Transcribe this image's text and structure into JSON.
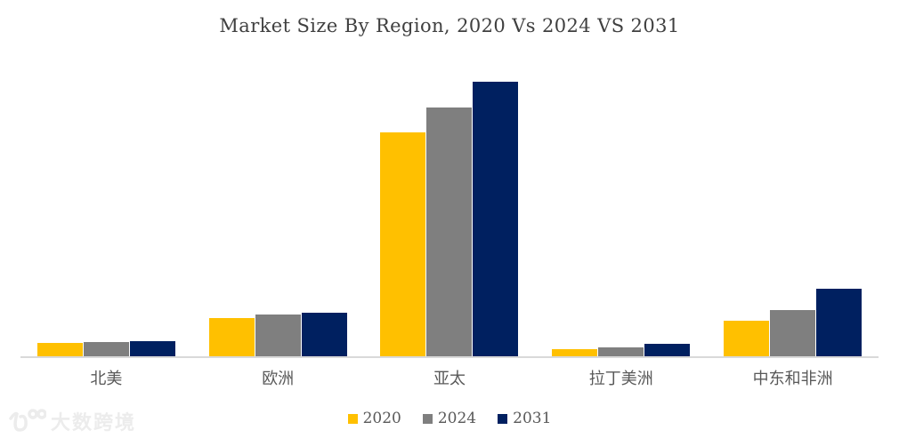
{
  "chart_data": {
    "type": "bar",
    "title": "Market Size By Region, 2020 Vs 2024 VS 2031",
    "categories": [
      "北美",
      "欧洲",
      "亚太",
      "拉丁美洲",
      "中东和非洲"
    ],
    "series": [
      {
        "name": "2020",
        "color": "#FFC000",
        "values": [
          5.5,
          14.4,
          81.7,
          3.1,
          13.6
        ]
      },
      {
        "name": "2024",
        "color": "#7F7F7F",
        "values": [
          5.8,
          15.7,
          90.6,
          4.0,
          17.4
        ]
      },
      {
        "name": "2031",
        "color": "#002060",
        "values": [
          6.0,
          16.4,
          100.0,
          5.2,
          25.1
        ]
      }
    ],
    "ylim": [
      0,
      107
    ],
    "y_axis_visible": false,
    "gridlines": false,
    "legend_position": "bottom",
    "legend_labels": [
      "2020",
      "2024",
      "2031"
    ]
  },
  "colors": {
    "series_2020": "#FFC000",
    "series_2024": "#7F7F7F",
    "series_2031": "#002060",
    "axis_line": "#D9D9D9",
    "title_text": "#404040",
    "label_text": "#595959",
    "watermark": "#ECECEC"
  },
  "watermark": {
    "text": "大数跨境"
  }
}
